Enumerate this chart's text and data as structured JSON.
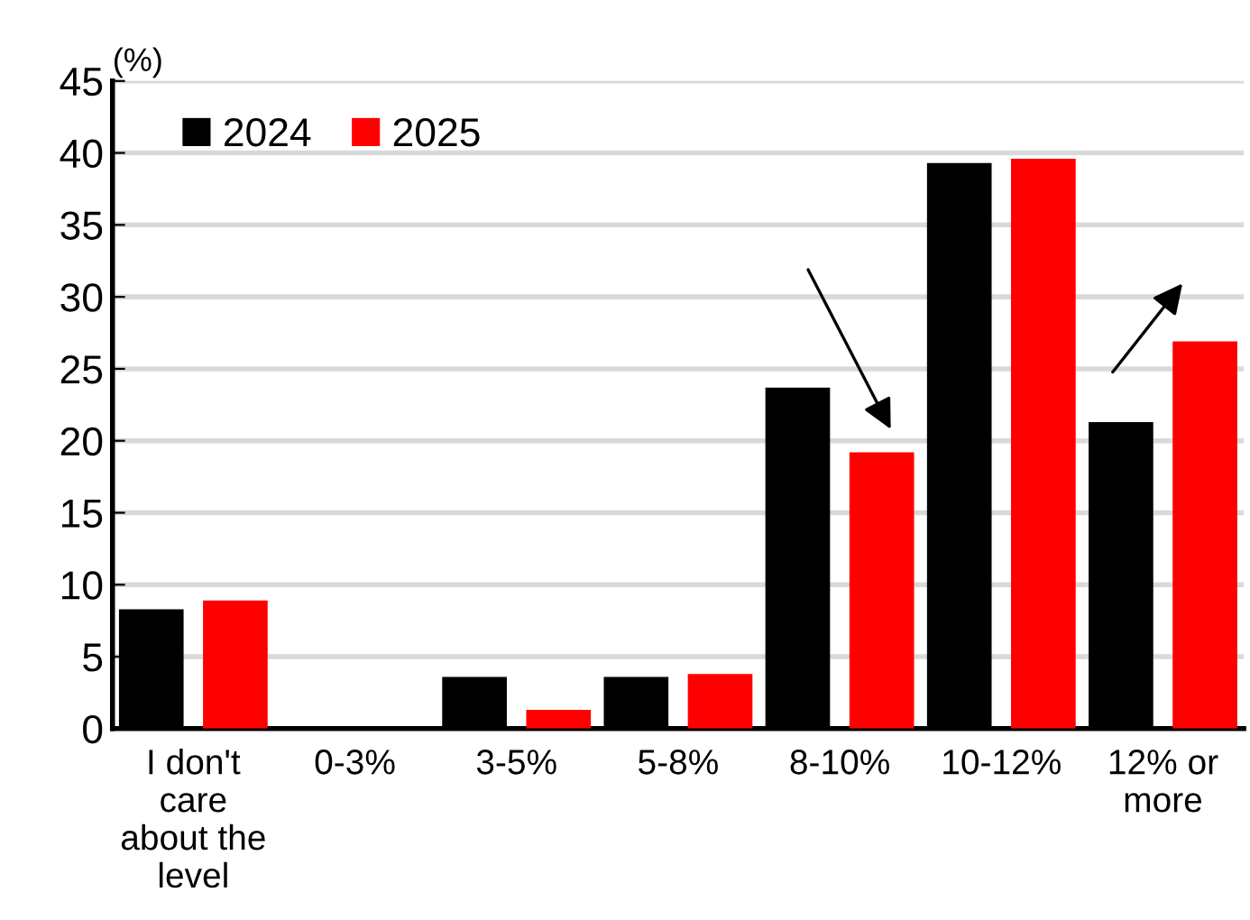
{
  "chart_data": {
    "type": "bar",
    "ylabel": "(%)",
    "categories": [
      "I don't\ncare\nabout the\nlevel",
      "0-3%",
      "3-5%",
      "5-8%",
      "8-10%",
      "10-12%",
      "12% or\nmore"
    ],
    "series": [
      {
        "name": "2024",
        "color": "#000000",
        "values": [
          8.3,
          0,
          3.6,
          3.6,
          23.7,
          39.3,
          21.3
        ]
      },
      {
        "name": "2025",
        "color": "#ff0000",
        "values": [
          8.9,
          0,
          1.3,
          3.8,
          19.2,
          39.6,
          26.9
        ]
      }
    ],
    "ylim": [
      0,
      45
    ],
    "yticks": [
      0,
      5,
      10,
      15,
      20,
      25,
      30,
      35,
      40,
      45
    ],
    "grid": "y",
    "legend": "top left"
  }
}
